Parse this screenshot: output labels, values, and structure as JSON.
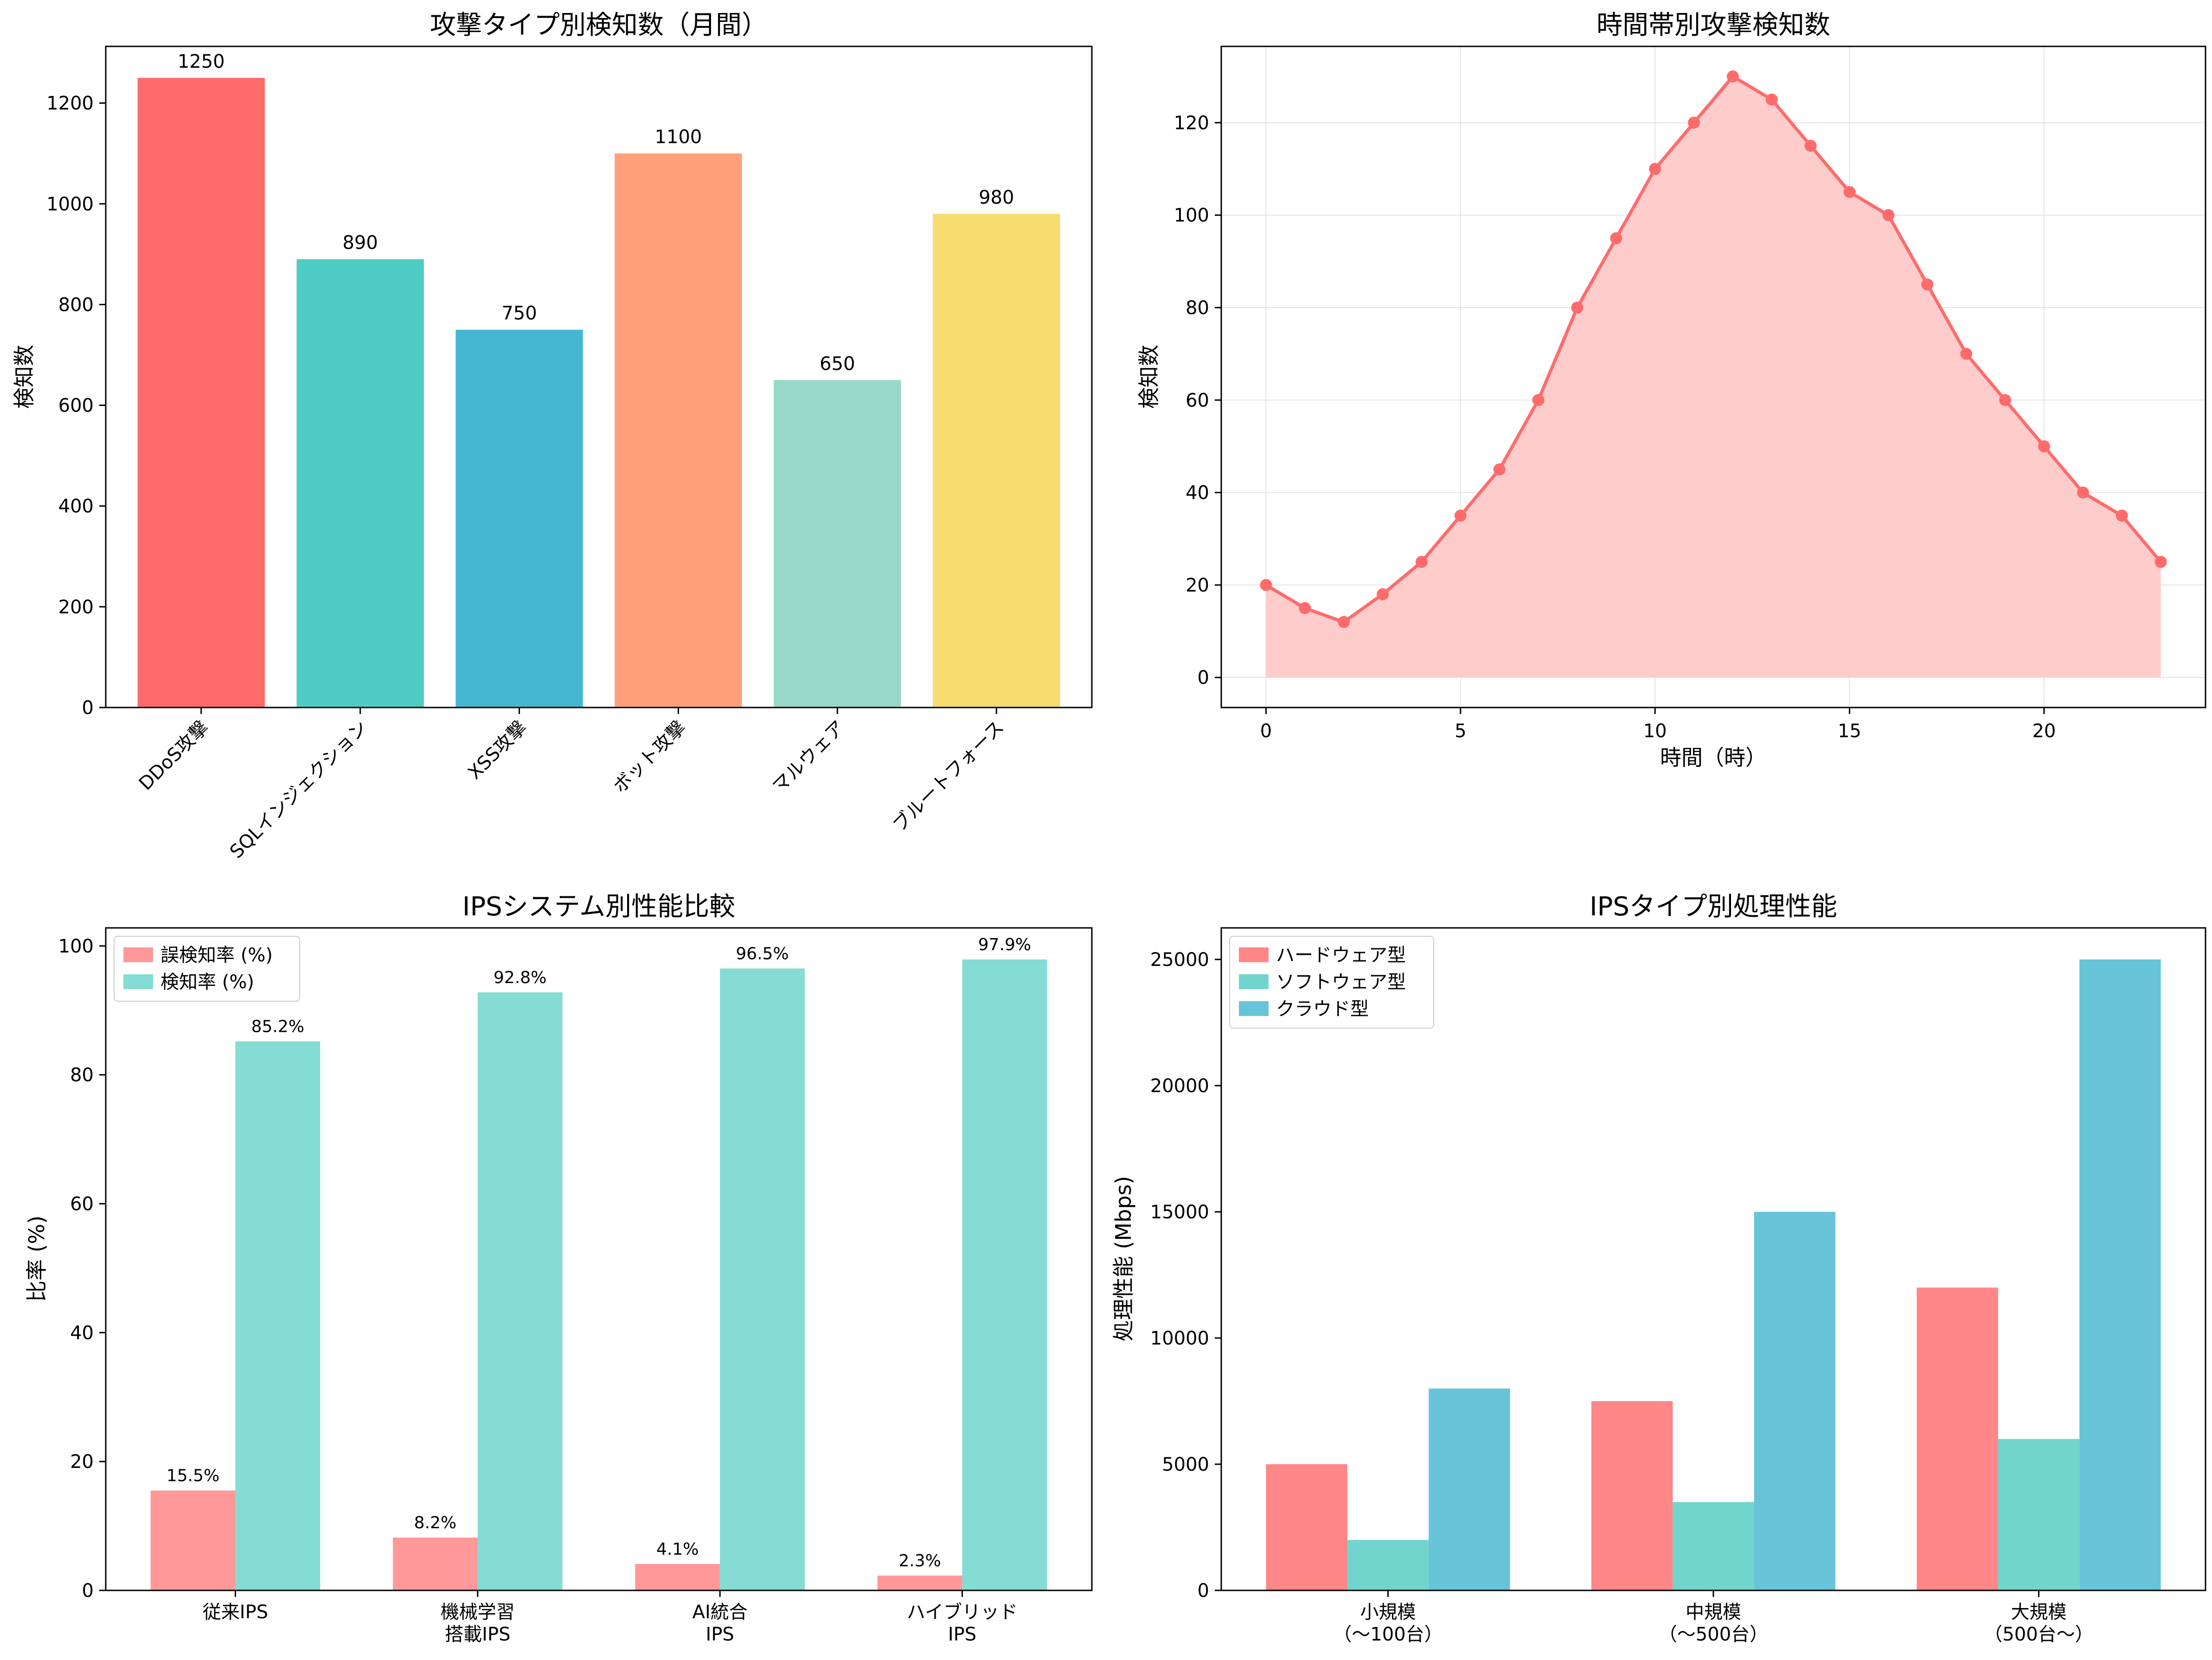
{
  "chart_data": [
    {
      "type": "bar",
      "title": "攻撃タイプ別検知数（月間）",
      "ylabel": "検知数",
      "categories": [
        "DDoS攻撃",
        "SQLインジェクション",
        "XSS攻撃",
        "ボット攻撃",
        "マルウェア",
        "ブルートフォース"
      ],
      "values": [
        1250,
        890,
        750,
        1100,
        650,
        980
      ],
      "value_labels": [
        "1250",
        "890",
        "750",
        "1100",
        "650",
        "980"
      ],
      "colors": [
        "#ff6b6b",
        "#4ecdc4",
        "#45b7d1",
        "#ffa07a",
        "#98d8c8",
        "#f7dc6f"
      ],
      "ylim": [
        0,
        1312.5
      ],
      "yticks": [
        0,
        200,
        400,
        600,
        800,
        1000,
        1200
      ],
      "grid": false
    },
    {
      "type": "area",
      "title": "時間帯別攻撃検知数",
      "xlabel": "時間（時）",
      "ylabel": "検知数",
      "x": [
        0,
        1,
        2,
        3,
        4,
        5,
        6,
        7,
        8,
        9,
        10,
        11,
        12,
        13,
        14,
        15,
        16,
        17,
        18,
        19,
        20,
        21,
        22,
        23
      ],
      "values": [
        20,
        15,
        12,
        18,
        25,
        35,
        45,
        60,
        80,
        95,
        110,
        120,
        130,
        125,
        115,
        105,
        100,
        85,
        70,
        60,
        50,
        40,
        35,
        25
      ],
      "xlim": [
        -1.15,
        24.15
      ],
      "ylim": [
        -6.5,
        136.5
      ],
      "xticks": [
        0,
        5,
        10,
        15,
        20
      ],
      "yticks": [
        0,
        20,
        40,
        60,
        80,
        100,
        120
      ],
      "line_color": "#ff6b6b",
      "fill_color": "#ffcccc",
      "grid": true
    },
    {
      "type": "bar",
      "title": "IPSシステム別性能比較",
      "ylabel": "比率 (%)",
      "categories": [
        [
          "従来IPS"
        ],
        [
          "機械学習",
          "搭載IPS"
        ],
        [
          "AI統合",
          "IPS"
        ],
        [
          "ハイブリッド",
          "IPS"
        ]
      ],
      "series": [
        {
          "name": "誤検知率 (%)",
          "values": [
            15.5,
            8.2,
            4.1,
            2.3
          ],
          "value_labels": [
            "15.5%",
            "8.2%",
            "4.1%",
            "2.3%"
          ],
          "color": "#ff9999"
        },
        {
          "name": "検知率 (%)",
          "values": [
            85.2,
            92.8,
            96.5,
            97.9
          ],
          "value_labels": [
            "85.2%",
            "92.8%",
            "96.5%",
            "97.9%"
          ],
          "color": "#84dcd4"
        }
      ],
      "ylim": [
        0,
        102.8
      ],
      "yticks": [
        0,
        20,
        40,
        60,
        80,
        100
      ],
      "legend": "upper-left",
      "grid": false
    },
    {
      "type": "bar",
      "title": "IPSタイプ別処理性能",
      "ylabel": "処理性能 (Mbps)",
      "categories": [
        [
          "小規模",
          "（～100台）"
        ],
        [
          "中規模",
          "（～500台）"
        ],
        [
          "大規模",
          "（500台～）"
        ]
      ],
      "series": [
        {
          "name": "ハードウェア型",
          "values": [
            5000,
            7500,
            12000
          ],
          "color": "#ff8787"
        },
        {
          "name": "ソフトウェア型",
          "values": [
            2000,
            3500,
            6000
          ],
          "color": "#71d5cd"
        },
        {
          "name": "クラウド型",
          "values": [
            8000,
            15000,
            25000
          ],
          "color": "#68c4d8"
        }
      ],
      "ylim": [
        0,
        26250
      ],
      "yticks": [
        0,
        5000,
        10000,
        15000,
        20000,
        25000
      ],
      "legend": "upper-left",
      "grid": false
    }
  ]
}
